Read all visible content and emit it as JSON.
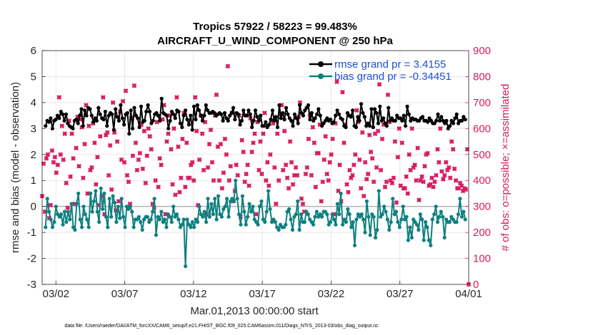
{
  "chart_data": {
    "type": "line",
    "title": "Tropics 57922 / 58223 = 99.483%",
    "subtitle": "AIRCRAFT_U_WIND_COMPONENT @ 250 hPa",
    "xlabel": "Mar.01,2013 00:00:00 start",
    "ylabel_left": "rmse and bias (model - observation)",
    "ylabel_right": "# of obs: o=possible; ×=assimilated",
    "footer": "data file: /Users/raeder/DAI/ATM_forcXX/CAM6_setup/f.e21.FHIST_BGC.f09_025.CAM6assim.011/Diags_NTrS_2013-03/obs_diag_output.nc",
    "xlim": [
      0,
      31
    ],
    "ylim_left": [
      -3,
      6
    ],
    "ylim_right": [
      0,
      900
    ],
    "x_ticks": [
      1,
      6,
      11,
      16,
      21,
      26,
      31
    ],
    "x_tick_labels": [
      "03/02",
      "03/07",
      "03/12",
      "03/17",
      "03/22",
      "03/27",
      "04/01"
    ],
    "y_left_ticks": [
      "-3",
      "-2",
      "-1",
      "0",
      "1",
      "2",
      "3",
      "4",
      "5",
      "6"
    ],
    "y_right_ticks": [
      "0",
      "100",
      "200",
      "300",
      "400",
      "500",
      "600",
      "700",
      "800",
      "900"
    ],
    "legend": [
      "rmse grand pr = 3.4155",
      "bias grand pr = -0.34451"
    ],
    "colors": {
      "rmse": "#000000",
      "bias": "#0f8080",
      "obs": "#d81b60",
      "zero_line": "#b3b3b3",
      "legend_text": "#1f4fd6"
    },
    "rmse": [
      3.1,
      3.3,
      3.25,
      3.4,
      3.0,
      3.3,
      3.35,
      3.5,
      3.4,
      3.65,
      3.55,
      3.3,
      3.55,
      3.2,
      3.1,
      3.05,
      3.0,
      3.3,
      3.35,
      3.2,
      3.5,
      3.75,
      3.1,
      3.7,
      3.5,
      3.8,
      3.75,
      3.5,
      3.25,
      3.4,
      3.3,
      3.8,
      3.55,
      3.4,
      3.35,
      3.65,
      3.1,
      3.5,
      3.6,
      3.55,
      2.95,
      3.75,
      3.45,
      3.3,
      3.9,
      3.4,
      3.15,
      3.55,
      3.6,
      2.8,
      3.7,
      3.0,
      3.8,
      3.5,
      3.4,
      3.05,
      3.85,
      3.25,
      3.3,
      3.65,
      3.9,
      3.65,
      3.2,
      3.3,
      3.55,
      3.6,
      3.5,
      3.3,
      4.15,
      3.6,
      3.55,
      3.5,
      3.0,
      3.3,
      3.65,
      3.55,
      3.4,
      3.7,
      3.65,
      3.2,
      3.05,
      3.5,
      3.7,
      3.35,
      3.15,
      3.5,
      2.95,
      3.85,
      3.35,
      3.9,
      3.7,
      3.5,
      3.3,
      3.5,
      3.9,
      3.7,
      3.6,
      3.6,
      3.65,
      3.6,
      3.5,
      3.55,
      3.6,
      3.55,
      3.3,
      3.6,
      3.4,
      3.3,
      3.5,
      3.6,
      3.8,
      3.35,
      3.6,
      3.55,
      3.15,
      3.3,
      3.7,
      3.5,
      3.5,
      3.7,
      3.55,
      3.05,
      3.3,
      3.7,
      3.45,
      3.3,
      3.5,
      3.1,
      3.1,
      3.25,
      3.05,
      3.15,
      3.35,
      3.7,
      3.3,
      3.45,
      3.05,
      3.9,
      3.4,
      3.6,
      3.35,
      3.8,
      3.55,
      3.4,
      3.3,
      3.1,
      3.55,
      3.4,
      3.2,
      3.9,
      3.6,
      3.5,
      3.7,
      3.8,
      3.9,
      3.35,
      3.6,
      3.3,
      3.4,
      3.55,
      3.75,
      3.5,
      3.1,
      3.2,
      3.3,
      3.4,
      3.3,
      3.35,
      3.2,
      3.25,
      3.5,
      3.7,
      3.55,
      3.4,
      3.35,
      3.1,
      3.05,
      3.6,
      3.5,
      3.45,
      3.7,
      3.1,
      3.05,
      3.45,
      3.3,
      3.95,
      3.6,
      3.45,
      3.1,
      3.2,
      3.1,
      3.75,
      3.05,
      3.75,
      3.6,
      3.2,
      3.85,
      3.3,
      3.4,
      3.2,
      3.1,
      3.8,
      3.3,
      3.4,
      3.3,
      3.3,
      3.5,
      3.4,
      3.4,
      3.3,
      3.5,
      3.1,
      3.85,
      3.55,
      3.3,
      3.4,
      3.35,
      3.35,
      3.3,
      3.3,
      3.4,
      3.45,
      3.3,
      3.3,
      3.25,
      3.4,
      3.3,
      3.2,
      3.2,
      3.3,
      3.55,
      3.3,
      3.45,
      3.3,
      3.2,
      3.3,
      3.0,
      3.1,
      3.3,
      3.2,
      3.4,
      3.55,
      3.2,
      3.3,
      3.3,
      3.45,
      3.35
    ],
    "bias": [
      -0.8,
      0.3,
      -0.2,
      -0.5,
      -0.8,
      -0.6,
      0.0,
      -0.3,
      -0.4,
      -0.3,
      -0.7,
      -0.2,
      -0.6,
      -0.2,
      -0.5,
      0.1,
      -0.8,
      -0.9,
      0.1,
      0.5,
      -0.5,
      -0.8,
      0.0,
      -0.3,
      -0.5,
      -0.8,
      0.5,
      -0.2,
      0.2,
      0.6,
      -0.2,
      -0.6,
      0.7,
      -0.1,
      0.5,
      -0.4,
      -0.8,
      0.3,
      -0.4,
      0.4,
      0.15,
      -0.6,
      0.0,
      -0.45,
      0.3,
      -0.4,
      -0.8,
      0.0,
      -0.1,
      0.0,
      -0.2,
      -0.8,
      -0.5,
      -0.5,
      -0.4,
      -0.6,
      -0.9,
      -0.5,
      -0.4,
      -0.4,
      -0.6,
      -0.5,
      -0.2,
      0.3,
      -1.1,
      -0.4,
      -0.5,
      -0.2,
      -0.6,
      -0.5,
      -0.8,
      -0.3,
      -0.4,
      -0.6,
      0.0,
      -0.4,
      -0.3,
      -0.5,
      -0.8,
      -0.7,
      -0.5,
      -2.3,
      -0.5,
      -0.7,
      -0.8,
      -0.6,
      -0.8,
      -0.5,
      -0.6,
      0.0,
      -0.3,
      -0.4,
      -0.2,
      -0.6,
      0.3,
      -0.4,
      0.1,
      -0.3,
      0.3,
      -0.5,
      0.4,
      -0.3,
      -0.4,
      -0.1,
      0.0,
      0.3,
      -0.4,
      0.2,
      0.3,
      0.2,
      1.0,
      0.3,
      -0.3,
      -0.7,
      0.4,
      -0.2,
      -0.7,
      -0.4,
      0.1,
      -0.2,
      0.0,
      -0.5,
      -0.6,
      -0.7,
      0.0,
      0.2,
      -0.5,
      -0.6,
      -0.2,
      0.6,
      -0.1,
      -0.6,
      -0.5,
      -0.6,
      -0.8,
      -0.9,
      -0.7,
      -0.8,
      -0.8,
      -0.7,
      -0.2,
      -0.1,
      -0.5,
      -0.9,
      -0.4,
      -0.3,
      0.2,
      -0.9,
      -0.3,
      -0.6,
      -0.6,
      -0.2,
      -0.3,
      -0.5,
      -0.6,
      -0.7,
      -0.4,
      -0.2,
      -0.4,
      -0.3,
      -0.4,
      -0.2,
      -0.2,
      -0.3,
      -0.7,
      -0.6,
      -0.3,
      -0.5,
      -0.7,
      0.1,
      -0.3,
      0.5,
      -0.7,
      -0.5,
      -0.6,
      -0.1,
      -0.3,
      -0.8,
      -0.6,
      -1.5,
      -0.5,
      -0.3,
      -0.4,
      -0.3,
      -0.5,
      -1.0,
      0.2,
      -0.4,
      -1.1,
      -0.3,
      -0.4,
      -1.2,
      -0.9,
      0.6,
      -0.4,
      -0.3,
      0.0,
      -0.2,
      -0.5,
      -0.9,
      -0.6,
      0.3,
      -0.3,
      -0.2,
      -0.6,
      -0.8,
      -0.5,
      0.0,
      -0.5,
      -0.4,
      -1.3,
      -0.8,
      -1.2,
      -0.5,
      -0.6,
      -0.7,
      -0.9,
      -0.3,
      -0.5,
      -1.3,
      -0.6,
      -0.8,
      -1.3,
      -1.5,
      -0.5,
      -0.3,
      0.0,
      -0.6,
      -0.4,
      -0.2,
      -0.4,
      -1.2,
      -0.5,
      -0.6,
      -0.6,
      -0.4,
      -0.5,
      -0.6,
      -0.6,
      -0.3,
      0.3,
      -0.4,
      -0.2,
      -0.5
    ],
    "obs_assimilated": [
      340,
      465,
      280,
      485,
      500,
      255,
      305,
      515,
      470,
      490,
      430,
      460,
      720,
      500,
      610,
      480,
      580,
      390,
      295,
      630,
      415,
      580,
      485,
      310,
      525,
      645,
      455,
      635,
      605,
      410,
      540,
      690,
      350,
      610,
      440,
      450,
      620,
      545,
      385,
      490,
      305,
      570,
      340,
      720,
      270,
      575,
      585,
      420,
      535,
      365,
      700,
      585,
      285,
      550,
      320,
      665,
      480,
      705,
      470,
      745,
      420,
      395,
      310,
      640,
      495,
      765,
      545,
      440,
      480,
      505,
      615,
      445,
      590,
      390,
      495,
      600,
      570,
      520,
      310,
      295,
      400,
      625,
      375,
      485,
      460,
      635,
      690,
      270,
      550,
      580,
      650,
      520,
      385,
      600,
      345,
      720,
      530,
      355,
      410,
      560,
      660,
      375,
      545,
      410,
      410,
      460,
      470,
      400,
      720,
      590,
      305,
      480,
      650,
      580,
      440,
      625,
      270,
      450,
      540,
      595,
      470,
      400,
      650,
      730,
      530,
      400,
      540,
      370,
      430,
      560,
      500,
      840,
      400,
      455,
      660,
      320,
      360,
      460,
      420,
      650,
      260,
      555,
      510,
      395,
      425,
      460,
      380,
      640,
      510,
      545,
      580,
      270,
      625,
      440,
      550,
      425,
      580,
      660,
      400,
      470,
      380,
      500,
      630,
      620,
      450,
      310,
      580,
      400,
      655,
      690,
      440,
      590,
      460,
      410,
      370,
      550,
      470,
      385,
      420,
      450,
      420,
      645,
      700,
      330,
      310,
      280,
      425,
      450,
      560,
      650,
      420,
      605,
      545,
      375,
      505,
      505,
      615,
      320,
      395,
      480,
      570,
      425,
      400,
      470,
      500,
      560,
      270,
      620,
      780,
      360,
      460,
      320,
      740,
      545,
      615,
      385,
      355,
      440,
      410,
      420,
      460,
      500,
      670,
      625,
      480,
      370,
      585,
      340,
      470,
      405,
      425,
      575,
      510,
      485,
      395,
      580,
      450,
      590,
      770,
      440,
      560,
      615,
      375,
      395,
      730,
      625,
      400,
      390,
      410,
      550,
      315,
      490,
      600,
      380,
      545,
      370,
      370,
      415,
      350,
      500,
      440,
      600,
      450,
      460,
      400,
      525,
      325,
      400,
      415,
      395,
      455,
      500,
      505,
      380,
      385,
      410,
      375,
      395,
      420,
      520,
      470,
      600,
      435,
      405,
      420,
      470,
      440,
      450,
      410,
      550,
      520,
      445,
      400,
      370,
      370,
      390,
      380,
      360,
      370,
      365,
      520,
      0
    ]
  }
}
